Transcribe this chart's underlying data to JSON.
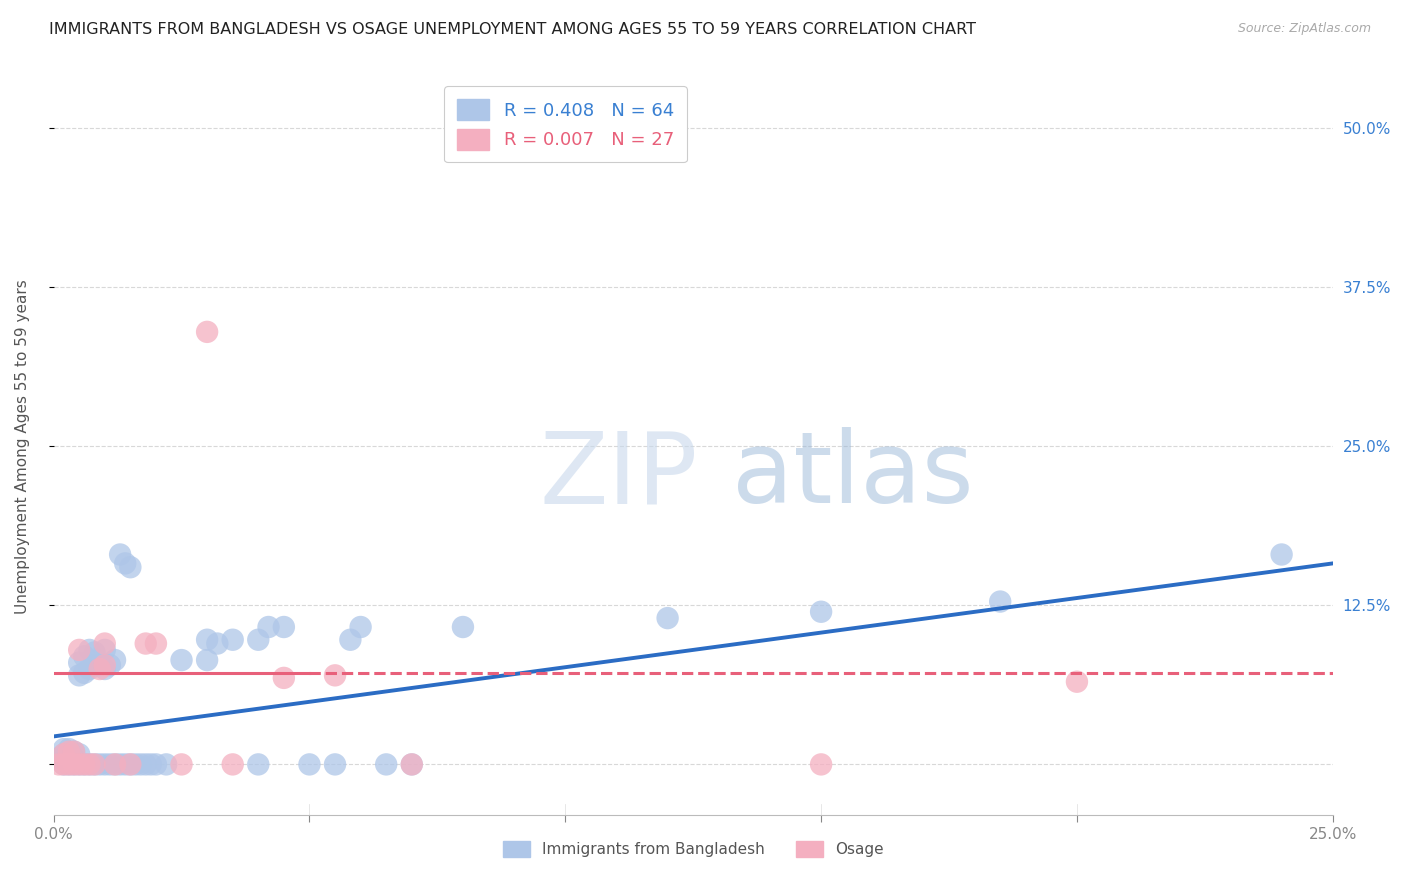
{
  "title": "IMMIGRANTS FROM BANGLADESH VS OSAGE UNEMPLOYMENT AMONG AGES 55 TO 59 YEARS CORRELATION CHART",
  "source": "Source: ZipAtlas.com",
  "ylabel": "Unemployment Among Ages 55 to 59 years",
  "xlim": [
    0.0,
    0.25
  ],
  "ylim": [
    -0.04,
    0.54
  ],
  "yticks": [
    0.0,
    0.125,
    0.25,
    0.375,
    0.5
  ],
  "ytick_labels": [
    "",
    "12.5%",
    "25.0%",
    "37.5%",
    "50.0%"
  ],
  "xticks": [
    0.0,
    0.05,
    0.1,
    0.15,
    0.2,
    0.25
  ],
  "xtick_labels": [
    "0.0%",
    "",
    "",
    "",
    "",
    "25.0%"
  ],
  "legend_entries": [
    {
      "label": "Immigrants from Bangladesh",
      "R": "0.408",
      "N": "64",
      "color": "#aec6e8"
    },
    {
      "label": "Osage",
      "R": "0.007",
      "N": "27",
      "color": "#f4afc0"
    }
  ],
  "background_color": "#ffffff",
  "grid_color": "#d8d8d8",
  "watermark_zip": "ZIP",
  "watermark_atlas": "atlas",
  "blue_scatter": [
    [
      0.001,
      0.005
    ],
    [
      0.002,
      0.0
    ],
    [
      0.002,
      0.008
    ],
    [
      0.002,
      0.012
    ],
    [
      0.003,
      0.0
    ],
    [
      0.003,
      0.008
    ],
    [
      0.003,
      0.012
    ],
    [
      0.004,
      0.0
    ],
    [
      0.004,
      0.005
    ],
    [
      0.004,
      0.01
    ],
    [
      0.005,
      0.0
    ],
    [
      0.005,
      0.008
    ],
    [
      0.005,
      0.07
    ],
    [
      0.005,
      0.08
    ],
    [
      0.006,
      0.0
    ],
    [
      0.006,
      0.072
    ],
    [
      0.006,
      0.085
    ],
    [
      0.007,
      0.0
    ],
    [
      0.007,
      0.075
    ],
    [
      0.007,
      0.09
    ],
    [
      0.008,
      0.0
    ],
    [
      0.008,
      0.078
    ],
    [
      0.008,
      0.088
    ],
    [
      0.009,
      0.0
    ],
    [
      0.009,
      0.078
    ],
    [
      0.01,
      0.0
    ],
    [
      0.01,
      0.075
    ],
    [
      0.01,
      0.09
    ],
    [
      0.011,
      0.0
    ],
    [
      0.011,
      0.078
    ],
    [
      0.012,
      0.0
    ],
    [
      0.012,
      0.082
    ],
    [
      0.013,
      0.0
    ],
    [
      0.013,
      0.165
    ],
    [
      0.014,
      0.0
    ],
    [
      0.014,
      0.158
    ],
    [
      0.015,
      0.0
    ],
    [
      0.015,
      0.155
    ],
    [
      0.016,
      0.0
    ],
    [
      0.017,
      0.0
    ],
    [
      0.018,
      0.0
    ],
    [
      0.019,
      0.0
    ],
    [
      0.02,
      0.0
    ],
    [
      0.022,
      0.0
    ],
    [
      0.025,
      0.082
    ],
    [
      0.03,
      0.082
    ],
    [
      0.03,
      0.098
    ],
    [
      0.032,
      0.095
    ],
    [
      0.035,
      0.098
    ],
    [
      0.04,
      0.0
    ],
    [
      0.04,
      0.098
    ],
    [
      0.042,
      0.108
    ],
    [
      0.045,
      0.108
    ],
    [
      0.05,
      0.0
    ],
    [
      0.055,
      0.0
    ],
    [
      0.058,
      0.098
    ],
    [
      0.06,
      0.108
    ],
    [
      0.065,
      0.0
    ],
    [
      0.07,
      0.0
    ],
    [
      0.08,
      0.108
    ],
    [
      0.12,
      0.115
    ],
    [
      0.15,
      0.12
    ],
    [
      0.185,
      0.128
    ],
    [
      0.24,
      0.165
    ]
  ],
  "pink_scatter": [
    [
      0.001,
      0.0
    ],
    [
      0.002,
      0.0
    ],
    [
      0.002,
      0.008
    ],
    [
      0.003,
      0.0
    ],
    [
      0.003,
      0.01
    ],
    [
      0.004,
      0.0
    ],
    [
      0.004,
      0.01
    ],
    [
      0.005,
      0.0
    ],
    [
      0.005,
      0.09
    ],
    [
      0.006,
      0.0
    ],
    [
      0.007,
      0.0
    ],
    [
      0.008,
      0.0
    ],
    [
      0.009,
      0.075
    ],
    [
      0.01,
      0.078
    ],
    [
      0.01,
      0.095
    ],
    [
      0.012,
      0.0
    ],
    [
      0.015,
      0.0
    ],
    [
      0.018,
      0.095
    ],
    [
      0.02,
      0.095
    ],
    [
      0.025,
      0.0
    ],
    [
      0.03,
      0.34
    ],
    [
      0.035,
      0.0
    ],
    [
      0.045,
      0.068
    ],
    [
      0.055,
      0.07
    ],
    [
      0.07,
      0.0
    ],
    [
      0.15,
      0.0
    ],
    [
      0.2,
      0.065
    ]
  ],
  "blue_line_x": [
    0.0,
    0.25
  ],
  "blue_line_y": [
    0.022,
    0.158
  ],
  "pink_line_x": [
    0.0,
    0.25
  ],
  "pink_line_y": [
    0.072,
    0.072
  ],
  "title_fontsize": 11.5,
  "axis_label_fontsize": 11,
  "tick_fontsize": 11,
  "right_tick_color": "#3a80d2",
  "title_color": "#222222"
}
